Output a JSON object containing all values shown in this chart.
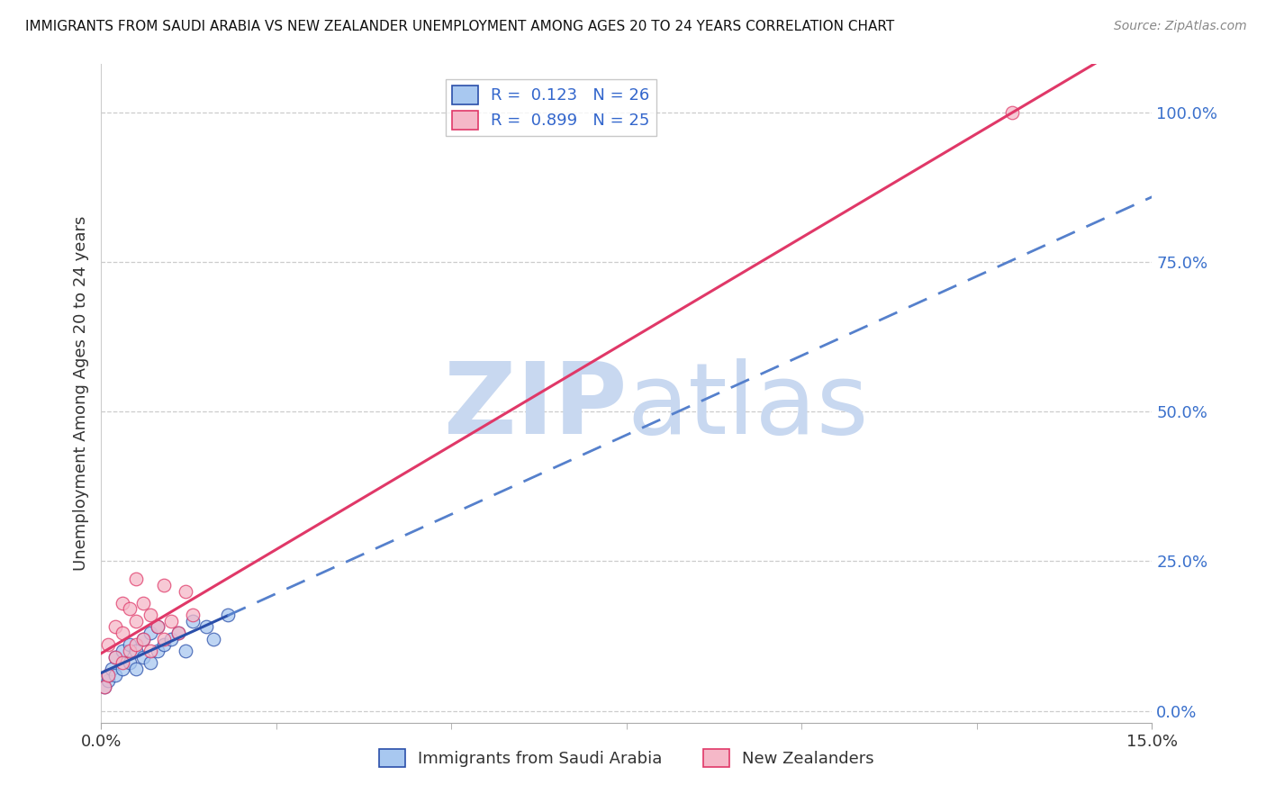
{
  "title": "IMMIGRANTS FROM SAUDI ARABIA VS NEW ZEALANDER UNEMPLOYMENT AMONG AGES 20 TO 24 YEARS CORRELATION CHART",
  "source": "Source: ZipAtlas.com",
  "label_blue": "Immigrants from Saudi Arabia",
  "label_pink": "New Zealanders",
  "ylabel": "Unemployment Among Ages 20 to 24 years",
  "r_blue": 0.123,
  "n_blue": 26,
  "r_pink": 0.899,
  "n_pink": 25,
  "xlim": [
    0.0,
    0.15
  ],
  "ylim": [
    -0.02,
    1.08
  ],
  "yticks": [
    0.0,
    0.25,
    0.5,
    0.75,
    1.0
  ],
  "ytick_labels": [
    "0.0%",
    "25.0%",
    "50.0%",
    "75.0%",
    "100.0%"
  ],
  "xtick_labels": [
    "0.0%",
    "15.0%"
  ],
  "color_blue": "#a8c8f0",
  "color_pink": "#f5b8c8",
  "line_blue_solid": "#2a4faa",
  "line_blue_dash": "#5580cc",
  "line_pink": "#e03868",
  "watermark_color": "#ccddf5",
  "grid_color": "#cccccc",
  "background": "#ffffff",
  "blue_scatter_x": [
    0.0005,
    0.001,
    0.001,
    0.0015,
    0.002,
    0.002,
    0.003,
    0.003,
    0.004,
    0.004,
    0.005,
    0.005,
    0.006,
    0.006,
    0.007,
    0.007,
    0.008,
    0.008,
    0.009,
    0.01,
    0.011,
    0.012,
    0.013,
    0.015,
    0.016,
    0.018
  ],
  "blue_scatter_y": [
    0.04,
    0.05,
    0.06,
    0.07,
    0.06,
    0.09,
    0.07,
    0.1,
    0.08,
    0.11,
    0.07,
    0.1,
    0.09,
    0.12,
    0.08,
    0.13,
    0.1,
    0.14,
    0.11,
    0.12,
    0.13,
    0.1,
    0.15,
    0.14,
    0.12,
    0.16
  ],
  "pink_scatter_x": [
    0.0005,
    0.001,
    0.001,
    0.002,
    0.002,
    0.003,
    0.003,
    0.003,
    0.004,
    0.004,
    0.005,
    0.005,
    0.005,
    0.006,
    0.006,
    0.007,
    0.007,
    0.008,
    0.009,
    0.009,
    0.01,
    0.011,
    0.012,
    0.013,
    0.13
  ],
  "pink_scatter_y": [
    0.04,
    0.06,
    0.11,
    0.09,
    0.14,
    0.08,
    0.13,
    0.18,
    0.1,
    0.17,
    0.11,
    0.15,
    0.22,
    0.12,
    0.18,
    0.1,
    0.16,
    0.14,
    0.12,
    0.21,
    0.15,
    0.13,
    0.2,
    0.16,
    1.0
  ],
  "legend_r_color": "#3366cc",
  "legend_n_color": "#2244aa"
}
